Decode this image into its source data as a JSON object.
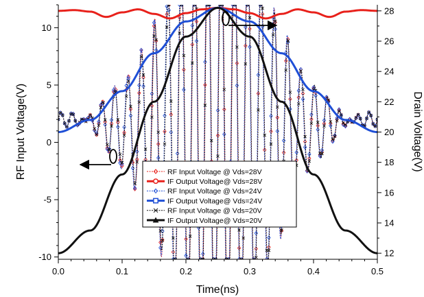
{
  "chart_data": {
    "type": "line",
    "xlabel": "Time(ns)",
    "ylabel_left": "RF Input Voltage(V)",
    "ylabel_right": "Drain Voltage(V)",
    "xlim": [
      0.0,
      0.5
    ],
    "ylim_left": [
      -10.2,
      12
    ],
    "ylim_right": [
      11.6,
      28.4
    ],
    "x_ticks": [
      "0.0",
      "0.1",
      "0.2",
      "0.3",
      "0.4",
      "0.5"
    ],
    "y_left_ticks": [
      "-10",
      "-5",
      "0",
      "5",
      "10"
    ],
    "y_right_ticks": [
      "12",
      "14",
      "16",
      "18",
      "20",
      "22",
      "24",
      "26",
      "28"
    ],
    "grid": false,
    "legend_position": "lower-center",
    "series": [
      {
        "name": "RF Input Voltage @ Vds=28V",
        "axis": "left",
        "color": "#e8211b",
        "style": "dotted-diamond",
        "x": [
          0.0,
          0.05,
          0.1,
          0.15,
          0.2,
          0.25,
          0.3,
          0.35,
          0.4,
          0.45,
          0.5
        ],
        "y": [
          2.0,
          3.5,
          5.0,
          8.0,
          10.5,
          11.5,
          10.5,
          7.5,
          4.0,
          2.5,
          2.0
        ]
      },
      {
        "name": "IF Output Voltage@ Vds=28V",
        "axis": "right",
        "color": "#e8211b",
        "style": "solid-thick",
        "x": [
          0.0,
          0.025,
          0.05,
          0.075,
          0.1,
          0.125,
          0.15,
          0.175,
          0.2,
          0.225,
          0.25,
          0.275,
          0.3,
          0.325,
          0.35,
          0.375,
          0.4,
          0.425,
          0.45,
          0.475,
          0.5
        ],
        "y": [
          28.0,
          28.05,
          27.95,
          27.6,
          27.9,
          28.1,
          27.8,
          27.5,
          27.85,
          28.1,
          28.2,
          28.1,
          27.85,
          27.5,
          27.8,
          28.1,
          27.9,
          27.6,
          27.95,
          28.05,
          28.0
        ]
      },
      {
        "name": "RF Input Voltage @ Vds=24V",
        "axis": "left",
        "color": "#1f4fd6",
        "style": "dotted-diamond",
        "x": [
          0.0,
          0.05,
          0.1,
          0.15,
          0.2,
          0.25,
          0.3,
          0.35,
          0.4,
          0.45,
          0.5
        ],
        "y": [
          2.0,
          3.5,
          5.0,
          8.0,
          10.5,
          11.5,
          10.5,
          7.5,
          4.0,
          2.5,
          2.0
        ]
      },
      {
        "name": "IF Output Voltage@ Vds=24V",
        "axis": "right",
        "color": "#1f4fd6",
        "style": "solid-thick",
        "x": [
          0.0,
          0.05,
          0.1,
          0.15,
          0.2,
          0.25,
          0.3,
          0.35,
          0.4,
          0.45,
          0.5
        ],
        "y": [
          20.0,
          20.8,
          22.7,
          25.2,
          27.3,
          28.2,
          27.3,
          25.2,
          22.7,
          20.8,
          20.0
        ]
      },
      {
        "name": "RF Input Voltage @ Vds=20V",
        "axis": "left",
        "color": "#111111",
        "style": "dotted-cross",
        "x": [
          0.0,
          0.05,
          0.1,
          0.15,
          0.2,
          0.25,
          0.3,
          0.35,
          0.4,
          0.45,
          0.5
        ],
        "y": [
          2.0,
          3.0,
          4.0,
          7.0,
          10.0,
          11.3,
          10.0,
          7.0,
          4.0,
          2.5,
          2.0
        ]
      },
      {
        "name": "IF Output Voltage@ Vds=20V",
        "axis": "right",
        "color": "#111111",
        "style": "solid-thick",
        "x": [
          0.0,
          0.05,
          0.1,
          0.15,
          0.2,
          0.25,
          0.3,
          0.35,
          0.4,
          0.45,
          0.5
        ],
        "y": [
          12.0,
          13.5,
          17.2,
          22.0,
          26.3,
          28.2,
          26.3,
          22.0,
          17.2,
          13.5,
          12.0
        ]
      }
    ]
  }
}
